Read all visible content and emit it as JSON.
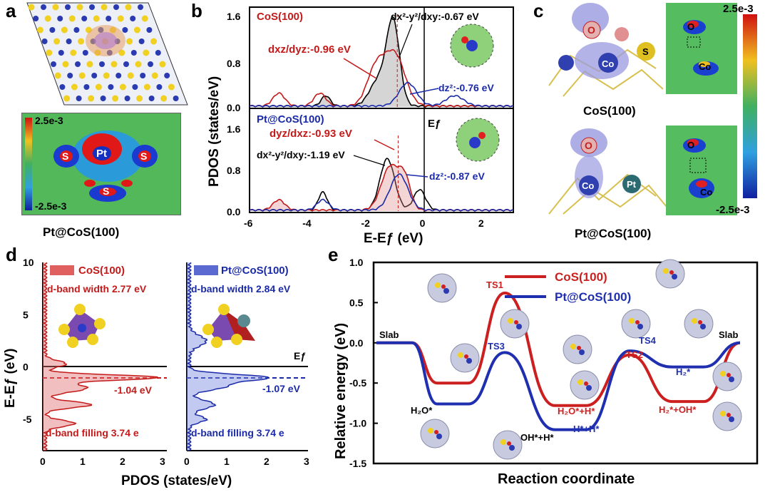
{
  "panels": {
    "a": "a",
    "b": "b",
    "c": "c",
    "d": "d",
    "e": "e"
  },
  "panel_a": {
    "top_caption": "",
    "colorbar_max": "2.5e-3",
    "colorbar_min": "-2.5e-3",
    "atom_labels": [
      "S",
      "Pt",
      "S",
      "S"
    ],
    "caption": "Pt@CoS(100)"
  },
  "panel_b": {
    "ylabel": "PDOS (states/eV)",
    "xlabel": "E-Eƒ (eV)",
    "top_label": "CoS(100)",
    "bottom_label": "Pt@CoS(100)",
    "ef_label": "Eƒ",
    "top_annotations": {
      "dx2y2": "dx²-y²/dxy:-0.67 eV",
      "dxz": "dxz/dyz:-0.96 eV",
      "dz2": "dz²:-0.76 eV"
    },
    "bottom_annotations": {
      "dyz": "dyz/dxz:-0.93 eV",
      "dx2y2": "dx²-y²/dxy:-1.19 eV",
      "dz2": "dz²:-0.87 eV"
    },
    "y_ticks_top": [
      "1.6",
      "0.8",
      "0.0"
    ],
    "y_ticks_bottom": [
      "1.6",
      "0.8",
      "0.0"
    ],
    "x_ticks": [
      "-6",
      "-4",
      "-2",
      "0",
      "2"
    ]
  },
  "panel_c": {
    "top_caption": "CoS(100)",
    "bottom_caption": "Pt@CoS(100)",
    "colorbar_max": "2.5e-3",
    "colorbar_min": "-2.5e-3",
    "atom_labels_top": [
      "O",
      "Co",
      "S"
    ],
    "atom_labels_bottom": [
      "O",
      "Co",
      "Pt"
    ],
    "map_labels_top": [
      "O",
      "Co"
    ],
    "map_labels_bottom": [
      "O",
      "Co"
    ]
  },
  "panel_d": {
    "ylabel": "E-Eƒ (eV)",
    "xlabel": "PDOS (states/eV)",
    "left_legend": "CoS(100)",
    "right_legend": "Pt@CoS(100)",
    "left_width": "d-band width 2.77 eV",
    "right_width": "d-band width 2.84 eV",
    "left_center": "-1.04 eV",
    "right_center": "-1.07 eV",
    "left_filling": "d-band filling 3.74 e",
    "right_filling": "d-band filling 3.74 e",
    "ef_label": "Eƒ",
    "y_ticks": [
      "10",
      "5",
      "0",
      "-5"
    ],
    "x_ticks_left": [
      "0",
      "1",
      "2",
      "3"
    ],
    "x_ticks_right": [
      "0",
      "1",
      "2",
      "3"
    ]
  },
  "chart_data": {
    "type": "line",
    "title": "",
    "xlabel": "Reaction coordinate",
    "ylabel": "Relative energy (eV)",
    "ylim": [
      -1.5,
      1.0
    ],
    "y_ticks": [
      "1.0",
      "0.5",
      "0.0",
      "-0.5",
      "-1.0",
      "-1.5"
    ],
    "states": [
      "Slab",
      "H2O*",
      "TS1/TS3",
      "OH*+H*",
      "TS2/TS4",
      "H2*+OH*",
      "Slab"
    ],
    "series": [
      {
        "name": "CoS(100)",
        "color": "#cc1f1f",
        "values": [
          0.0,
          -0.5,
          0.62,
          -0.78,
          -0.15,
          -0.73,
          0.0
        ]
      },
      {
        "name": "Pt@CoS(100)",
        "color": "#1f2fb0",
        "values": [
          0.0,
          -0.76,
          -0.12,
          -1.08,
          -0.1,
          -0.3,
          0.0
        ]
      }
    ],
    "state_labels": {
      "slab_left": "Slab",
      "slab_right": "Slab",
      "ts1": "TS1",
      "ts3": "TS3",
      "ts2": "TS2",
      "ts4": "TS4",
      "h2o": "H₂O*",
      "ohh": "OH*+H*",
      "hh": "H*+H*",
      "h2oh": "H₂O*+H*",
      "h2oh2": "H₂*+OH*",
      "h2": "H₂*"
    }
  }
}
